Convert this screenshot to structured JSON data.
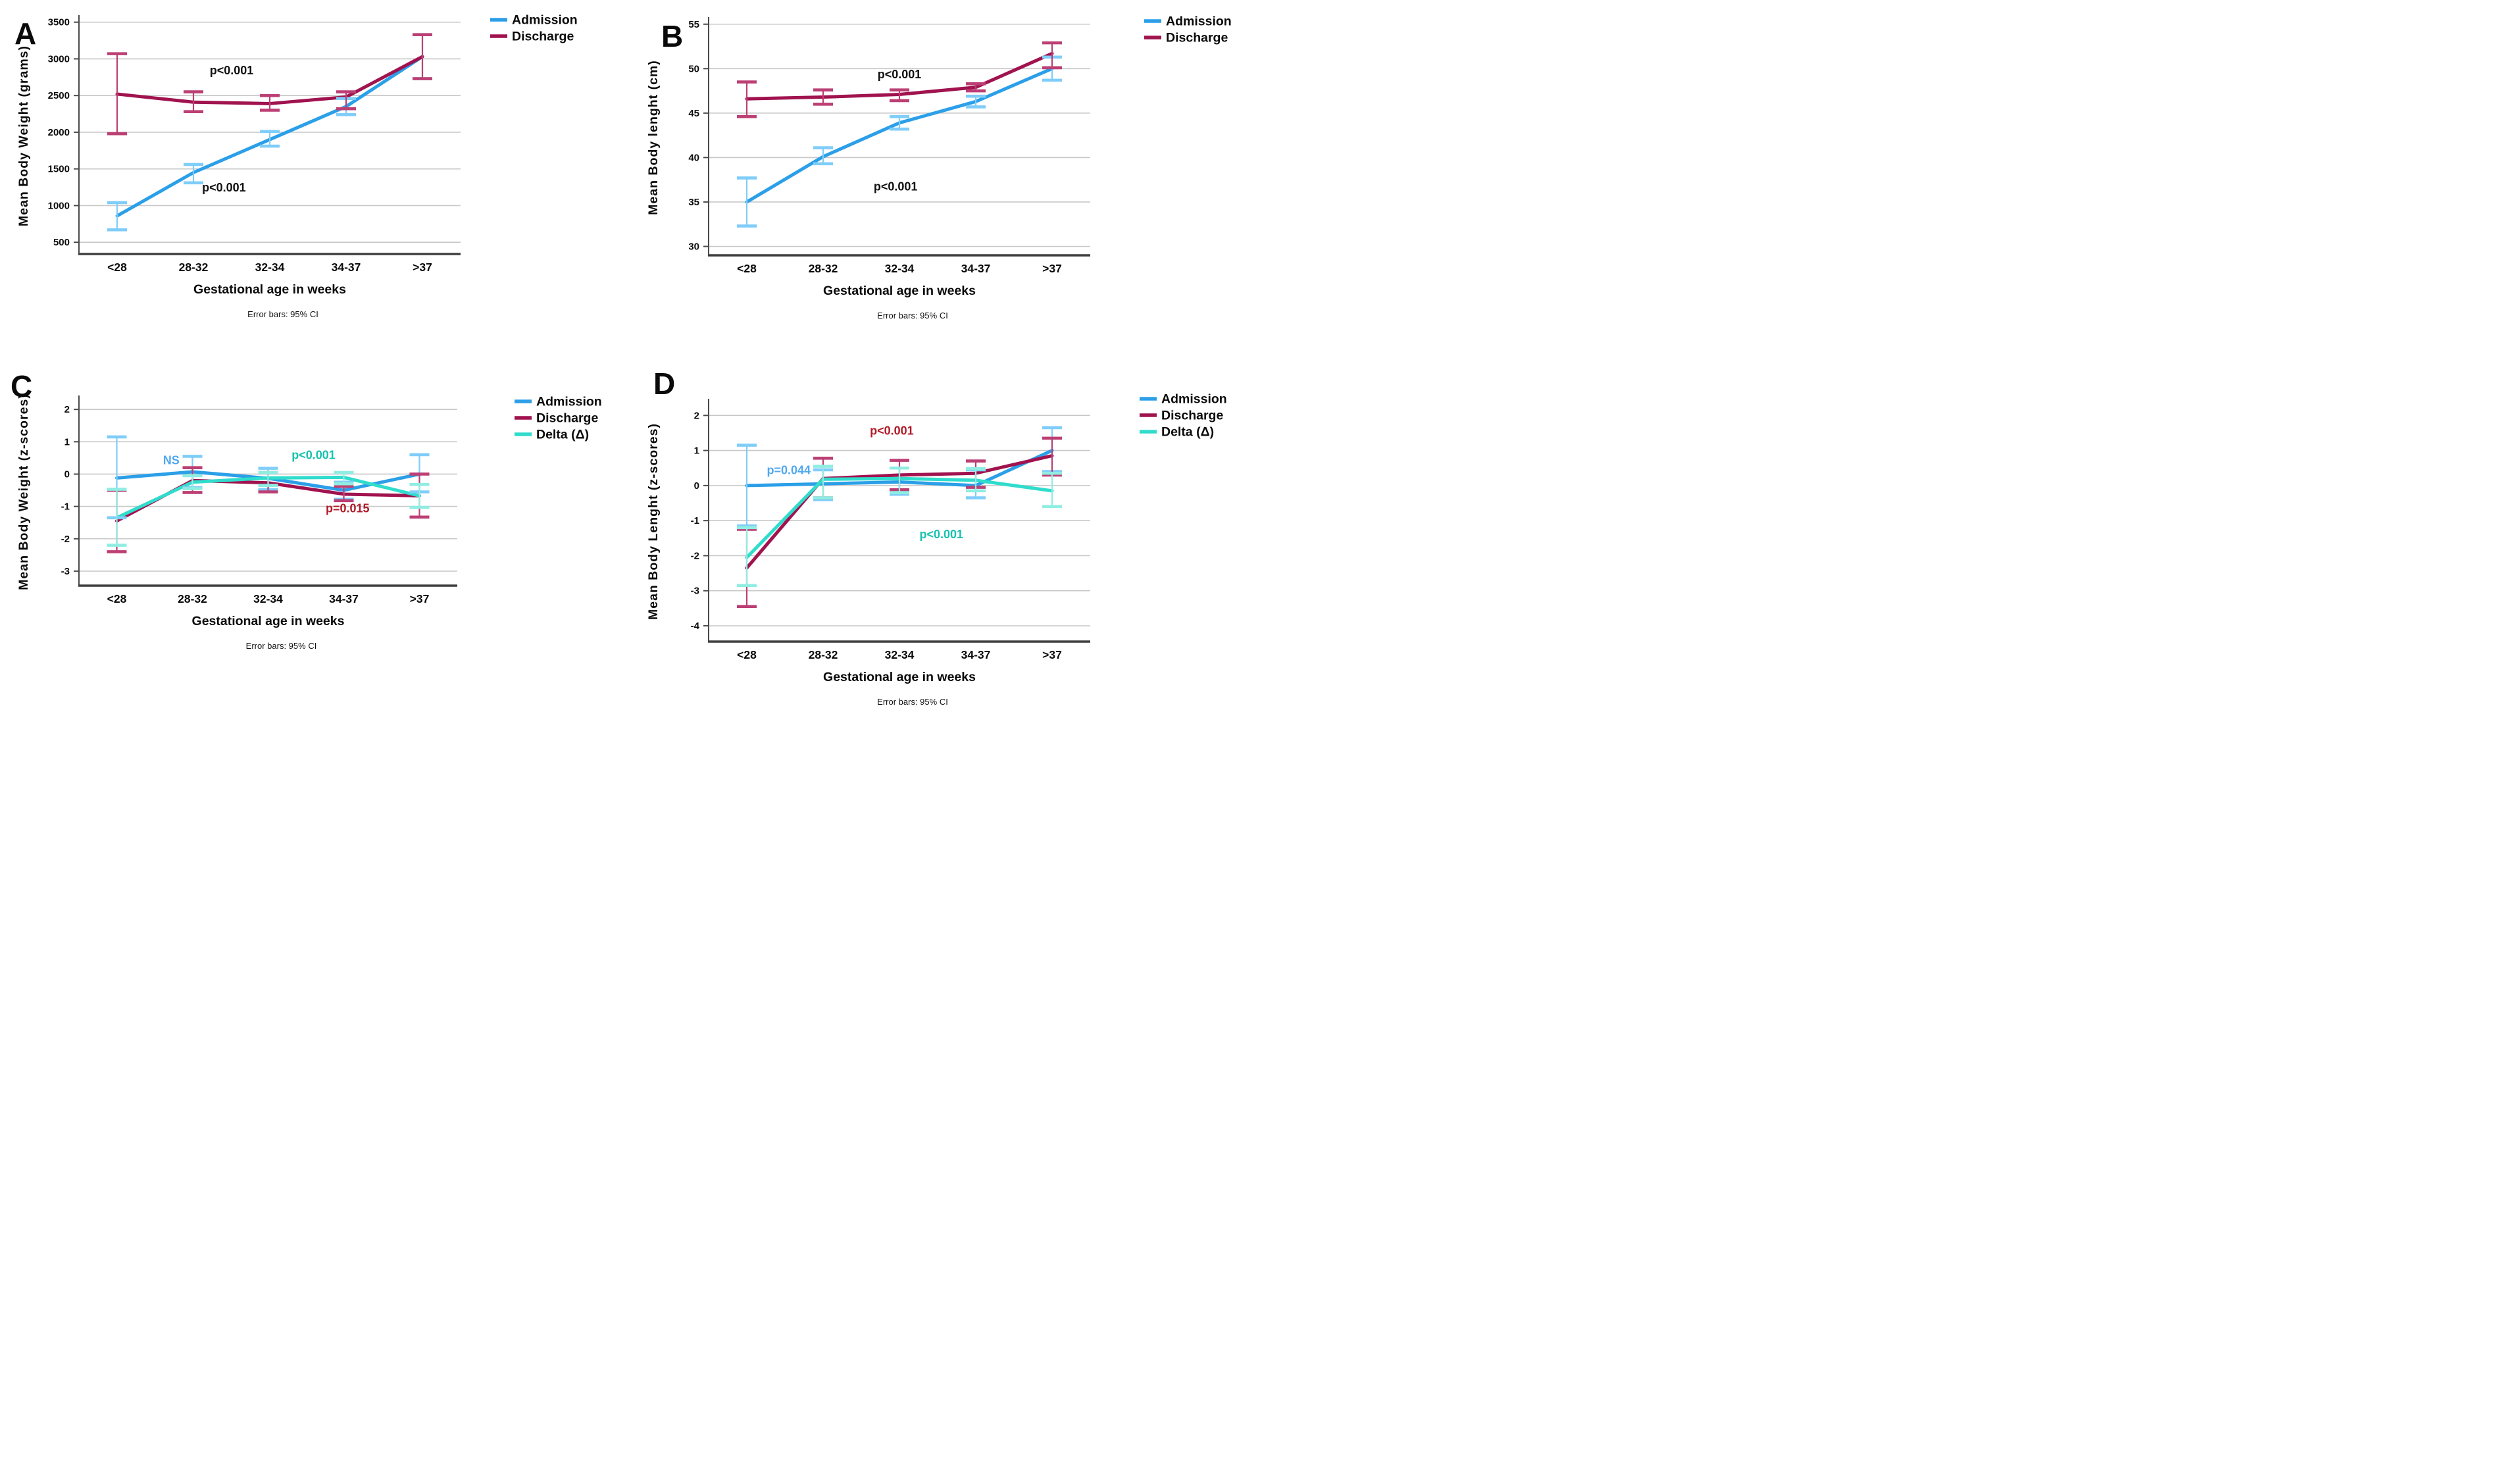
{
  "colors": {
    "admission": "#2B9FE8",
    "admission_cap": "#7FCDF9",
    "discharge": "#A0134F",
    "discharge_cap": "#BC3F74",
    "delta": "#30DCCC",
    "delta_cap": "#8FEDE2",
    "gridline": "#C8C8C8",
    "axis_spine": "#4A4A4A",
    "text": "#0A0A0A",
    "annotation_black": "#111111",
    "annotation_blue": "#4FA8F0",
    "annotation_teal": "#16C2AE",
    "annotation_red": "#B01A28"
  },
  "chart_data": [
    {
      "panel_label": "A",
      "type": "line",
      "ylabel": "Mean Body Weight (grams)",
      "xlabel": "Gestational age in weeks",
      "footnote": "Error bars: 95% CI",
      "categories": [
        "<28",
        "28-32",
        "32-34",
        "34-37",
        ">37"
      ],
      "ylim": [
        340,
        3560
      ],
      "yticks": [
        500,
        1000,
        1500,
        2000,
        2500,
        3000,
        3500
      ],
      "legend_position": "top-right",
      "grid": true,
      "series": [
        {
          "name": "Admission",
          "color_key": "admission",
          "cap_key": "admission_cap",
          "values": [
            860,
            1450,
            1900,
            2350,
            3030
          ],
          "ci_low": [
            670,
            1310,
            1810,
            2240,
            2730
          ],
          "ci_high": [
            1040,
            1560,
            2010,
            2460,
            3330
          ]
        },
        {
          "name": "Discharge",
          "color_key": "discharge",
          "cap_key": "discharge_cap",
          "values": [
            2520,
            2410,
            2390,
            2480,
            3030
          ],
          "ci_low": [
            1980,
            2280,
            2300,
            2320,
            2730
          ],
          "ci_high": [
            3070,
            2550,
            2500,
            2550,
            3330
          ]
        }
      ],
      "annotations": [
        {
          "text": "p<0.001",
          "color_key": "annotation_black",
          "xi": 1.5,
          "y": 2790
        },
        {
          "text": "p<0.001",
          "color_key": "annotation_black",
          "xi": 1.4,
          "y": 1190
        }
      ]
    },
    {
      "panel_label": "B",
      "type": "line",
      "ylabel": "Mean Body lenght (cm)",
      "xlabel": "Gestational age in weeks",
      "footnote": "Error bars: 95% CI",
      "categories": [
        "<28",
        "28-32",
        "32-34",
        "34-37",
        ">37"
      ],
      "ylim": [
        29.0,
        55.5
      ],
      "yticks": [
        30,
        35,
        40,
        45,
        50,
        55
      ],
      "legend_position": "top-right",
      "grid": true,
      "series": [
        {
          "name": "Admission",
          "color_key": "admission",
          "cap_key": "admission_cap",
          "values": [
            35.0,
            40.1,
            43.9,
            46.3,
            50.0
          ],
          "ci_low": [
            32.3,
            39.3,
            43.2,
            45.7,
            48.7
          ],
          "ci_high": [
            37.7,
            41.1,
            44.6,
            46.9,
            51.3
          ]
        },
        {
          "name": "Discharge",
          "color_key": "discharge",
          "cap_key": "discharge_cap",
          "values": [
            46.6,
            46.8,
            47.1,
            47.9,
            51.7
          ],
          "ci_low": [
            44.6,
            46.0,
            46.4,
            47.5,
            50.1
          ],
          "ci_high": [
            48.5,
            47.6,
            47.6,
            48.3,
            52.9
          ]
        }
      ],
      "annotations": [
        {
          "text": "p<0.001",
          "color_key": "annotation_black",
          "xi": 2.0,
          "y": 48.9
        },
        {
          "text": "p<0.001",
          "color_key": "annotation_black",
          "xi": 1.95,
          "y": 36.3
        }
      ]
    },
    {
      "panel_label": "C",
      "type": "line",
      "ylabel": "Mean Body Weight (z-scores)",
      "xlabel": "Gestational age in weeks",
      "footnote": "Error bars: 95% CI",
      "categories": [
        "<28",
        "28-32",
        "32-34",
        "34-37",
        ">37"
      ],
      "ylim": [
        -3.45,
        2.35
      ],
      "yticks": [
        2,
        1,
        0,
        -1,
        -2,
        -3
      ],
      "legend_position": "top-right",
      "grid": true,
      "series": [
        {
          "name": "Admission",
          "color_key": "admission",
          "cap_key": "admission_cap",
          "values": [
            -0.12,
            0.07,
            -0.13,
            -0.5,
            0.0
          ],
          "ci_low": [
            -1.35,
            -0.42,
            -0.48,
            -0.78,
            -0.55
          ],
          "ci_high": [
            1.15,
            0.55,
            0.18,
            -0.25,
            0.6
          ]
        },
        {
          "name": "Discharge",
          "color_key": "discharge",
          "cap_key": "discharge_cap",
          "values": [
            -1.45,
            -0.2,
            -0.27,
            -0.62,
            -0.67
          ],
          "ci_low": [
            -2.4,
            -0.57,
            -0.55,
            -0.82,
            -1.33
          ],
          "ci_high": [
            -0.5,
            0.2,
            0.05,
            -0.38,
            0.0
          ]
        },
        {
          "name": "Delta (Δ)",
          "color_key": "delta",
          "cap_key": "delta_cap",
          "values": [
            -1.35,
            -0.25,
            -0.12,
            -0.1,
            -0.67
          ],
          "ci_low": [
            -2.2,
            -0.45,
            -0.35,
            -0.3,
            -1.03
          ],
          "ci_high": [
            -0.47,
            -0.05,
            0.05,
            0.05,
            -0.32
          ]
        }
      ],
      "annotations": [
        {
          "text": "NS",
          "color_key": "annotation_blue",
          "xi": 0.72,
          "y": 0.3
        },
        {
          "text": "p<0.001",
          "color_key": "annotation_teal",
          "xi": 2.6,
          "y": 0.47
        },
        {
          "text": "p=0.015",
          "color_key": "annotation_red",
          "xi": 3.05,
          "y": -1.18
        }
      ]
    },
    {
      "panel_label": "D",
      "type": "line",
      "ylabel": "Mean Body Lenght (z-scores)",
      "xlabel": "Gestational age in weeks",
      "footnote": "Error bars: 95% CI",
      "categories": [
        "<28",
        "28-32",
        "32-34",
        "34-37",
        ">37"
      ],
      "ylim": [
        -4.45,
        2.4
      ],
      "yticks": [
        2,
        1,
        0,
        -1,
        -2,
        -3,
        -4
      ],
      "legend_position": "top-right",
      "grid": true,
      "series": [
        {
          "name": "Admission",
          "color_key": "admission",
          "cap_key": "admission_cap",
          "values": [
            0.0,
            0.05,
            0.1,
            0.0,
            1.0
          ],
          "ci_low": [
            -1.15,
            -0.4,
            -0.25,
            -0.35,
            0.4
          ],
          "ci_high": [
            1.15,
            0.45,
            0.5,
            0.45,
            1.65
          ]
        },
        {
          "name": "Discharge",
          "color_key": "discharge",
          "cap_key": "discharge_cap",
          "values": [
            -2.35,
            0.2,
            0.3,
            0.35,
            0.85
          ],
          "ci_low": [
            -3.45,
            -0.35,
            -0.12,
            -0.05,
            0.3
          ],
          "ci_high": [
            -1.25,
            0.78,
            0.72,
            0.7,
            1.35
          ]
        },
        {
          "name": "Delta (Δ)",
          "color_key": "delta",
          "cap_key": "delta_cap",
          "values": [
            -2.05,
            0.18,
            0.2,
            0.15,
            -0.15
          ],
          "ci_low": [
            -2.85,
            -0.35,
            -0.2,
            -0.15,
            -0.6
          ],
          "ci_high": [
            -1.2,
            0.55,
            0.5,
            0.48,
            0.35
          ]
        }
      ],
      "annotations": [
        {
          "text": "p=0.044",
          "color_key": "annotation_blue",
          "xi": 0.55,
          "y": 0.33
        },
        {
          "text": "p<0.001",
          "color_key": "annotation_red",
          "xi": 1.9,
          "y": 1.45
        },
        {
          "text": "p<0.001",
          "color_key": "annotation_teal",
          "xi": 2.55,
          "y": -1.5
        }
      ]
    }
  ]
}
